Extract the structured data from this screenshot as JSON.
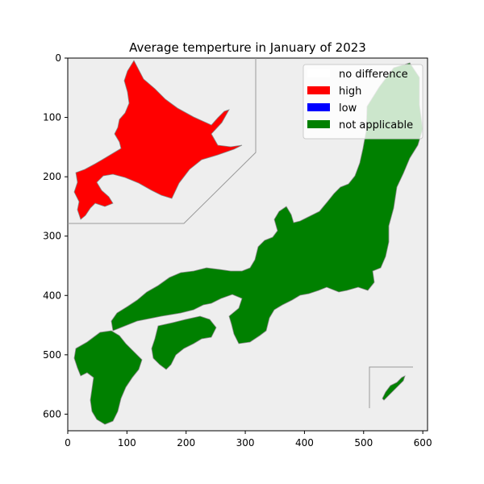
{
  "chart_data": {
    "type": "map",
    "title": "Average temperture in January of 2023",
    "xlabel": "",
    "ylabel": "",
    "xlim": [
      0,
      608
    ],
    "ylim": [
      628,
      0
    ],
    "x_ticks": [
      0,
      100,
      200,
      300,
      400,
      500,
      600
    ],
    "y_ticks": [
      0,
      100,
      200,
      300,
      400,
      500,
      600
    ],
    "legend": {
      "placement": "top-right",
      "entries": [
        {
          "label": "no difference",
          "color": "#ffffff"
        },
        {
          "label": "high",
          "color": "#ff0000"
        },
        {
          "label": "low",
          "color": "#0000ff"
        },
        {
          "label": "not applicable",
          "color": "#008000"
        }
      ]
    },
    "regions": [
      {
        "name": "Hokkaido",
        "category": "high"
      },
      {
        "name": "Honshu",
        "category": "not applicable"
      },
      {
        "name": "Shikoku",
        "category": "not applicable"
      },
      {
        "name": "Kyushu",
        "category": "not applicable"
      },
      {
        "name": "Okinawa",
        "category": "not applicable"
      }
    ]
  },
  "colors": {
    "background": "#eeeeee",
    "border": "#888888"
  }
}
